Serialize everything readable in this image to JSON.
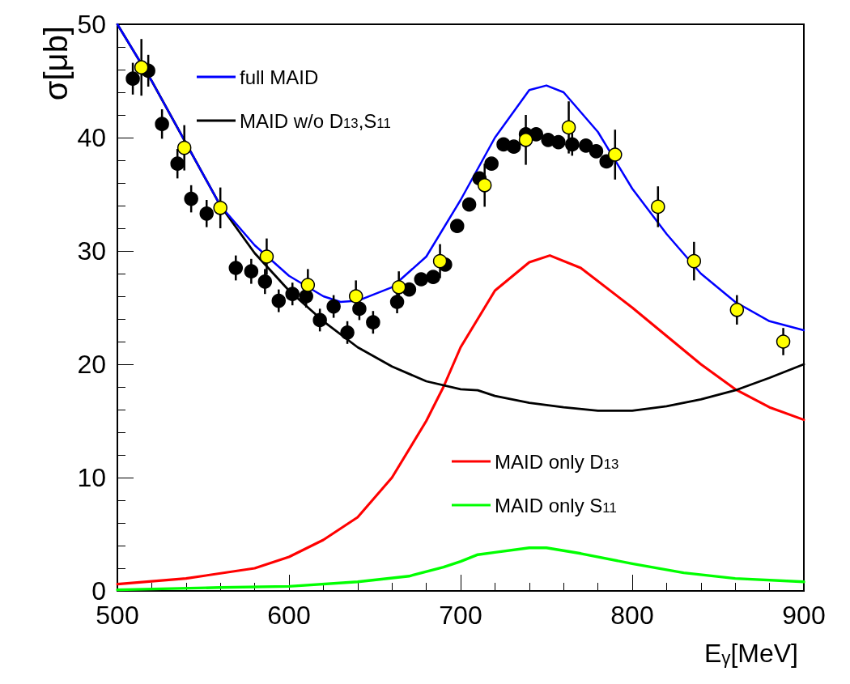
{
  "chart_data": {
    "type": "line",
    "xlabel": "E$_{γ}$[MeV]",
    "ylabel": "σ[μb]",
    "xlim": [
      500,
      900
    ],
    "xticks": [
      500,
      {
        "value": 520,
        "label": null
      },
      {
        "value": 540,
        "label": null
      },
      {
        "value": 560,
        "label": null
      },
      {
        "value": 580,
        "label": null
      },
      600,
      {
        "value": 620,
        "label": null
      },
      {
        "value": 640,
        "label": null
      },
      {
        "value": 660,
        "label": null
      },
      {
        "value": 680,
        "label": null
      },
      700,
      {
        "value": 720,
        "label": null
      },
      {
        "value": 740,
        "label": null
      },
      {
        "value": 760,
        "label": null
      },
      {
        "value": 780,
        "label": null
      },
      800,
      {
        "value": 820,
        "label": null
      },
      {
        "value": 840,
        "label": null
      },
      {
        "value": 860,
        "label": null
      },
      {
        "value": 880,
        "label": null
      },
      900
    ],
    "ylim": [
      0,
      50
    ],
    "yticks": [
      0,
      {
        "value": 2,
        "label": null
      },
      {
        "value": 4,
        "label": null
      },
      {
        "value": 6,
        "label": null
      },
      {
        "value": 8,
        "label": null
      },
      10,
      {
        "value": 12,
        "label": null
      },
      {
        "value": 14,
        "label": null
      },
      {
        "value": 16,
        "label": null
      },
      {
        "value": 18,
        "label": null
      },
      20,
      {
        "value": 22,
        "label": null
      },
      {
        "value": 24,
        "label": null
      },
      {
        "value": 26,
        "label": null
      },
      {
        "value": 28,
        "label": null
      },
      30,
      {
        "value": 32,
        "label": null
      },
      {
        "value": 34,
        "label": null
      },
      {
        "value": 36,
        "label": null
      },
      {
        "value": 38,
        "label": null
      },
      40,
      {
        "value": 42,
        "label": null
      },
      {
        "value": 44,
        "label": null
      },
      {
        "value": 46,
        "label": null
      },
      {
        "value": 48,
        "label": null
      },
      50
    ],
    "grid": false,
    "legend": "left",
    "line_style": "solid",
    "series": [
      {
        "name": "full MAID",
        "color": "#0000ff",
        "x": [
          500,
          520,
          540,
          560,
          580,
          600,
          620,
          630,
          640,
          660,
          680,
          700,
          720,
          740,
          750,
          760,
          780,
          800,
          820,
          840,
          860,
          880,
          900
        ],
        "values": [
          50,
          45,
          39.5,
          34,
          30.5,
          27.8,
          26,
          25.5,
          25.6,
          26.8,
          29.5,
          34.5,
          40,
          44.2,
          44.6,
          44,
          40.5,
          35.5,
          31.5,
          28,
          25.5,
          23.8,
          23
        ]
      },
      {
        "name": "MAID w/o D$_{13}$,S$_{11}$",
        "color": "#000000",
        "x": [
          500,
          520,
          540,
          560,
          580,
          600,
          620,
          640,
          660,
          680,
          700,
          710,
          720,
          740,
          760,
          780,
          800,
          820,
          840,
          860,
          880,
          900
        ],
        "values": [
          50,
          45,
          39.5,
          34,
          29.8,
          26.5,
          23.8,
          21.5,
          19.8,
          18.5,
          17.8,
          17.7,
          17.2,
          16.6,
          16.2,
          15.9,
          15.9,
          16.3,
          16.9,
          17.7,
          18.8,
          20
        ]
      },
      {
        "name": "MAID only D$_{13}$",
        "color": "#ff0000",
        "x": [
          500,
          540,
          580,
          600,
          620,
          640,
          660,
          680,
          690,
          700,
          710,
          720,
          740,
          752,
          770,
          800,
          820,
          840,
          860,
          880,
          900
        ],
        "values": [
          0.6,
          1.1,
          2,
          3,
          4.5,
          6.5,
          10,
          15,
          18,
          21.5,
          24,
          26.5,
          29,
          29.6,
          28.5,
          25,
          22.5,
          20,
          17.8,
          16.2,
          15.1
        ]
      },
      {
        "name": "MAID only S$_{11}$",
        "color": "#00ff00",
        "x": [
          500,
          560,
          600,
          640,
          670,
          690,
          700,
          710,
          720,
          740,
          750,
          770,
          800,
          830,
          860,
          900
        ],
        "values": [
          0.1,
          0.3,
          0.4,
          0.8,
          1.3,
          2.1,
          2.6,
          3.2,
          3.4,
          3.8,
          3.8,
          3.3,
          2.4,
          1.6,
          1.1,
          0.8
        ]
      },
      {
        "type": "scatter",
        "marker": "circle",
        "color": "#000000",
        "x": [
          509,
          518,
          526,
          535,
          543,
          552,
          569,
          578,
          586,
          594,
          602,
          610,
          618,
          626,
          634,
          641,
          649,
          663,
          670,
          677,
          684,
          691,
          698,
          705,
          711,
          718,
          725,
          731,
          738,
          744,
          751,
          757,
          765,
          773,
          779,
          785
        ],
        "values": [
          45.2,
          45.9,
          41.2,
          37.7,
          34.6,
          33.3,
          28.5,
          28.2,
          27.3,
          25.6,
          26.2,
          26,
          23.9,
          25.1,
          22.8,
          24.9,
          23.7,
          25.5,
          26.6,
          27.5,
          27.7,
          28.8,
          32.2,
          34.1,
          36.4,
          37.7,
          39.4,
          39.2,
          40.3,
          40.3,
          39.8,
          39.6,
          39.4,
          39.3,
          38.8,
          37.9
        ],
        "errors": [
          1.4,
          1.4,
          1.3,
          1.3,
          1.2,
          1.2,
          1.1,
          1.1,
          1.1,
          1.0,
          1.0,
          1.0,
          1.0,
          1.0,
          1.0,
          1.0,
          1.0,
          1.0,
          null,
          null,
          null,
          null,
          null,
          null,
          null,
          null,
          null,
          null,
          null,
          null,
          null,
          null,
          1.0,
          null,
          null,
          null
        ]
      },
      {
        "type": "scatter",
        "marker": "circle",
        "color": "#ffff00",
        "x": [
          514,
          539,
          560,
          587,
          611,
          639,
          664,
          688,
          714,
          738,
          763,
          790,
          815,
          836,
          861,
          888
        ],
        "values": [
          46.2,
          39.1,
          33.8,
          29.5,
          27,
          26,
          26.8,
          29.1,
          35.8,
          39.8,
          40.9,
          38.5,
          33.9,
          29.1,
          24.8,
          22
        ],
        "errors": [
          2.5,
          2.0,
          1.8,
          1.6,
          1.4,
          1.4,
          1.4,
          1.5,
          1.9,
          2.2,
          2.3,
          2.2,
          1.8,
          1.7,
          1.3,
          1.2
        ]
      }
    ]
  }
}
